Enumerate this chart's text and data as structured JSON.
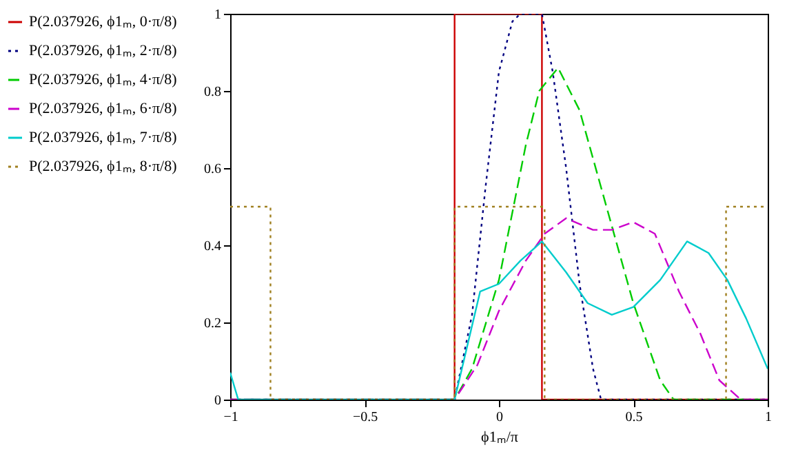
{
  "chart_data": {
    "type": "line",
    "xlabel": "ϕ1ₘ/π",
    "xlim": [
      -1,
      1
    ],
    "xticks": [
      -1,
      -0.5,
      0,
      0.5,
      1
    ],
    "ylim": [
      0,
      1
    ],
    "yticks": [
      0,
      0.2,
      0.4,
      0.6,
      0.8,
      1
    ],
    "grid": false,
    "legend": "left",
    "series": [
      {
        "name": "P(2.037926, ϕ1ₘ, 0·π/8)",
        "color": "#cc0000",
        "line_style": "solid",
        "x": [
          -1,
          -0.165,
          -0.165,
          0.16,
          0.16,
          1
        ],
        "values": [
          0,
          0,
          1,
          1,
          0,
          0
        ]
      },
      {
        "name": "P(2.037926, ϕ1ₘ, 2·π/8)",
        "color": "#000080",
        "line_style": "dotted",
        "x": [
          -1,
          -0.165,
          -0.1,
          -0.05,
          0,
          0.05,
          0.08,
          0.16,
          0.2,
          0.25,
          0.3,
          0.35,
          0.38,
          1
        ],
        "values": [
          0,
          0,
          0.22,
          0.55,
          0.85,
          0.98,
          1,
          1,
          0.85,
          0.6,
          0.3,
          0.08,
          0,
          0
        ]
      },
      {
        "name": "P(2.037926, ϕ1ₘ, 4·π/8)",
        "color": "#00cc00",
        "line_style": "dashed",
        "x": [
          -1,
          -0.165,
          -0.1,
          0,
          0.1,
          0.15,
          0.22,
          0.3,
          0.4,
          0.5,
          0.6,
          0.65,
          1
        ],
        "values": [
          0,
          0,
          0.08,
          0.31,
          0.66,
          0.8,
          0.86,
          0.75,
          0.5,
          0.25,
          0.05,
          0,
          0
        ]
      },
      {
        "name": "P(2.037926, ϕ1ₘ, 6·π/8)",
        "color": "#cc00cc",
        "line_style": "dashed",
        "x": [
          -1,
          -0.165,
          -0.08,
          0,
          0.1,
          0.17,
          0.25,
          0.35,
          0.42,
          0.5,
          0.58,
          0.67,
          0.75,
          0.82,
          0.9,
          1
        ],
        "values": [
          0,
          0,
          0.09,
          0.23,
          0.36,
          0.43,
          0.47,
          0.44,
          0.44,
          0.46,
          0.43,
          0.28,
          0.17,
          0.05,
          0,
          0
        ]
      },
      {
        "name": "P(2.037926, ϕ1ₘ, 7·π/8)",
        "color": "#00cccc",
        "line_style": "solid",
        "x": [
          -1,
          -0.97,
          -0.165,
          -0.07,
          0,
          0.08,
          0.16,
          0.25,
          0.33,
          0.42,
          0.5,
          0.6,
          0.7,
          0.78,
          0.85,
          0.92,
          1
        ],
        "values": [
          0.07,
          0,
          0,
          0.28,
          0.3,
          0.36,
          0.41,
          0.33,
          0.25,
          0.22,
          0.24,
          0.31,
          0.41,
          0.38,
          0.31,
          0.21,
          0.08
        ]
      },
      {
        "name": "P(2.037926, ϕ1ₘ, 8·π/8)",
        "color": "#a08020",
        "line_style": "dotted",
        "x": [
          -1,
          -0.85,
          -0.85,
          -0.165,
          -0.165,
          0.17,
          0.17,
          0.845,
          0.845,
          1
        ],
        "values": [
          0.5,
          0.5,
          0,
          0,
          0.5,
          0.5,
          0,
          0,
          0.5,
          0.5
        ]
      }
    ]
  }
}
